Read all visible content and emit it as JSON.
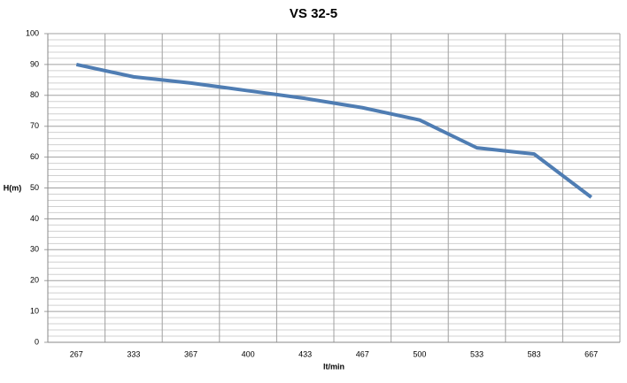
{
  "chart_data": {
    "type": "line",
    "title": "VS 32-5",
    "x_label": "lt/min",
    "y_label": "H(m)",
    "categories": [
      "267",
      "333",
      "367",
      "400",
      "433",
      "467",
      "500",
      "533",
      "583",
      "667"
    ],
    "values": [
      90,
      86,
      84,
      81.5,
      79,
      76,
      72,
      63,
      61,
      47
    ],
    "color": "#4f7db3",
    "ylim": [
      0,
      100
    ],
    "yticks": [
      0,
      10,
      20,
      30,
      40,
      50,
      60,
      70,
      80,
      90,
      100
    ],
    "grid": true
  }
}
